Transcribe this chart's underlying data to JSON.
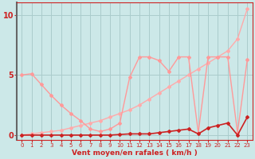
{
  "background_color": "#cce8e8",
  "grid_color": "#aacccc",
  "xlabel": "Vent moyen/en rafales ( km/h )",
  "ylabel_ticks": [
    0,
    5,
    10
  ],
  "x_ticks": [
    0,
    1,
    2,
    3,
    4,
    5,
    6,
    7,
    8,
    9,
    10,
    11,
    12,
    13,
    14,
    15,
    16,
    17,
    18,
    19,
    20,
    21,
    22,
    23
  ],
  "xlim": [
    -0.5,
    23.5
  ],
  "ylim": [
    -0.4,
    11.0
  ],
  "line1": {
    "x": [
      0,
      1,
      2,
      3,
      4,
      5,
      6,
      7,
      8,
      9,
      10,
      11,
      12,
      13,
      14,
      15,
      16,
      17,
      18,
      19,
      20,
      21,
      22,
      23
    ],
    "y": [
      5.0,
      5.1,
      4.2,
      3.3,
      2.5,
      1.8,
      1.2,
      0.5,
      0.3,
      0.5,
      1.0,
      4.8,
      6.5,
      6.5,
      6.2,
      5.3,
      6.5,
      6.5,
      0.2,
      6.5,
      6.5,
      6.5,
      0.2,
      6.3
    ],
    "color": "#ff9999",
    "lw": 1.0,
    "marker": "D",
    "ms": 2.0
  },
  "line2": {
    "x": [
      0,
      1,
      2,
      3,
      4,
      5,
      6,
      7,
      8,
      9,
      10,
      11,
      12,
      13,
      14,
      15,
      16,
      17,
      18,
      19,
      20,
      21,
      22,
      23
    ],
    "y": [
      0.0,
      0.1,
      0.2,
      0.3,
      0.4,
      0.6,
      0.8,
      1.0,
      1.2,
      1.5,
      1.8,
      2.1,
      2.5,
      3.0,
      3.5,
      4.0,
      4.5,
      5.0,
      5.5,
      6.0,
      6.5,
      7.0,
      8.0,
      10.5
    ],
    "color": "#ffaaaa",
    "lw": 1.0,
    "marker": "D",
    "ms": 2.0
  },
  "line3": {
    "x": [
      0,
      1,
      2,
      3,
      4,
      5,
      6,
      7,
      8,
      9,
      10,
      11,
      12,
      13,
      14,
      15,
      16,
      17,
      18,
      19,
      20,
      21,
      22,
      23
    ],
    "y": [
      0.0,
      0.0,
      0.0,
      0.0,
      0.0,
      0.0,
      0.0,
      0.0,
      0.0,
      0.0,
      0.05,
      0.1,
      0.1,
      0.1,
      0.2,
      0.3,
      0.4,
      0.5,
      0.1,
      0.6,
      0.8,
      1.0,
      0.0,
      1.5
    ],
    "color": "#cc2222",
    "lw": 1.2,
    "marker": "D",
    "ms": 2.0
  }
}
